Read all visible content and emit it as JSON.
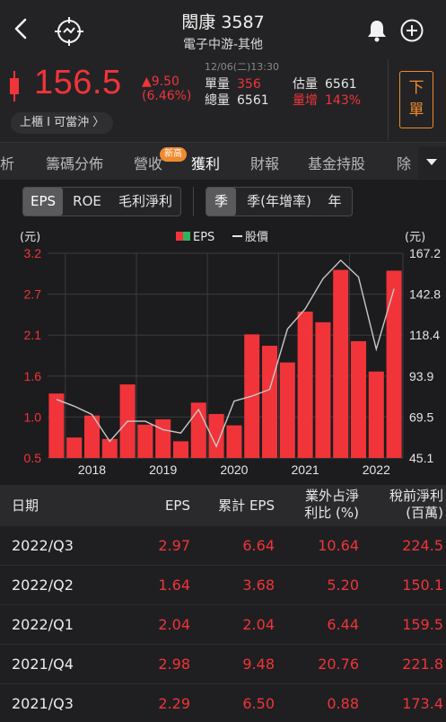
{
  "header": {
    "title": "閎康 3587",
    "subtitle": "電子中游-其他"
  },
  "quote": {
    "price": "156.5",
    "change": "▲9.50",
    "change_pct": "(6.46%)",
    "timestamp": "12/06(二)13:30",
    "unit_vol_label": "單量",
    "unit_vol": "356",
    "total_vol_label": "總量",
    "total_vol": "6561",
    "est_vol_label": "估量",
    "est_vol": "6561",
    "vol_growth_label": "量增",
    "vol_growth": "143%",
    "order_button": "下單",
    "market_tag": "上櫃 I 可當沖 〉",
    "colors": {
      "up": "#f0343a",
      "accent": "#f08a2e"
    }
  },
  "tabs": {
    "items": [
      "析",
      "籌碼分佈",
      "營收",
      "獲利",
      "財報",
      "基金持股",
      "除"
    ],
    "active": "獲利",
    "badge": "新高"
  },
  "segments": {
    "metric": [
      "EPS",
      "ROE",
      "毛利淨利"
    ],
    "metric_selected": "EPS",
    "period": [
      "季",
      "季(年增率)",
      "年"
    ],
    "period_selected": "季"
  },
  "chart_data": {
    "type": "bar",
    "legend": [
      "EPS",
      "股價"
    ],
    "left_unit": "(元)",
    "right_unit": "(元)",
    "y_left_ticks": [
      "3.2",
      "2.7",
      "2.1",
      "1.6",
      "1.0",
      "0.5"
    ],
    "y_right_ticks": [
      "167.2",
      "142.8",
      "118.4",
      "93.9",
      "69.5",
      "45.1"
    ],
    "ylim": [
      0.5,
      3.2
    ],
    "y2lim": [
      45.1,
      167.2
    ],
    "x_labels": [
      "2018",
      "2019",
      "2020",
      "2021",
      "2022"
    ],
    "categories": [
      "2017/Q4",
      "2018/Q1",
      "2018/Q2",
      "2018/Q3",
      "2018/Q4",
      "2019/Q1",
      "2019/Q2",
      "2019/Q3",
      "2019/Q4",
      "2020/Q1",
      "2020/Q2",
      "2020/Q3",
      "2020/Q4",
      "2021/Q1",
      "2021/Q2",
      "2021/Q3",
      "2021/Q4",
      "2022/Q1",
      "2022/Q2",
      "2022/Q3"
    ],
    "series": [
      {
        "name": "EPS",
        "values": [
          1.35,
          0.77,
          1.06,
          0.75,
          1.47,
          0.94,
          1.01,
          0.72,
          1.23,
          1.08,
          0.93,
          2.13,
          1.98,
          1.76,
          2.43,
          2.29,
          2.98,
          2.04,
          1.64,
          2.97
        ]
      },
      {
        "name": "股價",
        "values": [
          80,
          76,
          71,
          55,
          67,
          67,
          62,
          60,
          74,
          52,
          79,
          82,
          86,
          122,
          134,
          152,
          163,
          153,
          110,
          146
        ]
      }
    ]
  },
  "table": {
    "headers": [
      "日期",
      "EPS",
      "累計 EPS",
      "業外占淨\n利比 (%)",
      "稅前淨利\n(百萬)"
    ],
    "rows": [
      [
        "2022/Q3",
        "2.97",
        "6.64",
        "10.64",
        "224.5"
      ],
      [
        "2022/Q2",
        "1.64",
        "3.68",
        "5.20",
        "150.1"
      ],
      [
        "2022/Q1",
        "2.04",
        "2.04",
        "6.44",
        "159.5"
      ],
      [
        "2021/Q4",
        "2.98",
        "9.48",
        "20.76",
        "221.8"
      ],
      [
        "2021/Q3",
        "2.29",
        "6.50",
        "0.88",
        "173.4"
      ]
    ]
  }
}
